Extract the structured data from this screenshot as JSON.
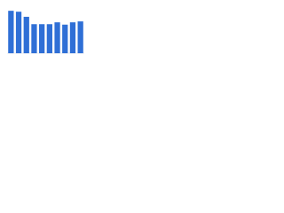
{
  "chart_data": {
    "type": "bar",
    "categories": [
      null,
      null,
      null,
      null,
      null,
      null,
      null,
      null,
      null,
      null
    ],
    "values": [
      92,
      90,
      79,
      63,
      63,
      63,
      67,
      62,
      67,
      69
    ],
    "color": "#2f6fd6",
    "ylim": [
      0,
      100
    ]
  }
}
